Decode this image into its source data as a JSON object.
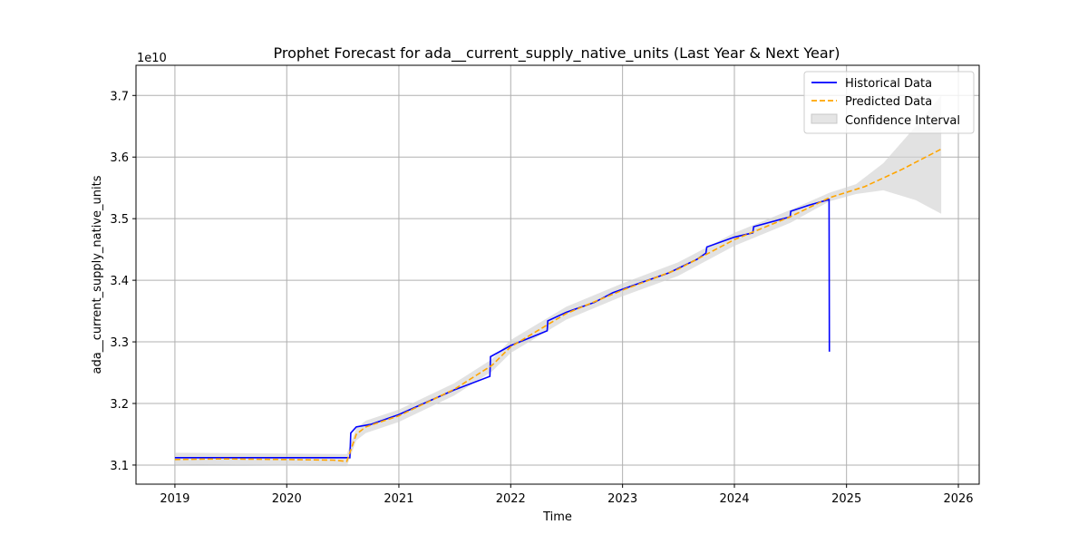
{
  "chart_data": {
    "type": "line",
    "title": "Prophet Forecast for ada__current_supply_native_units (Last Year & Next Year)",
    "xlabel": "Time",
    "ylabel": "ada__current_supply_native_units",
    "y_offset_label": "1e10",
    "x_ticks": [
      "2019",
      "2020",
      "2021",
      "2022",
      "2023",
      "2024",
      "2025",
      "2026"
    ],
    "y_ticks": [
      "3.1",
      "3.2",
      "3.3",
      "3.4",
      "3.5",
      "3.6",
      "3.7"
    ],
    "x_range": [
      "2018-08-27",
      "2026-03-10"
    ],
    "y_range": [
      3.069,
      3.749
    ],
    "y_multiplier": 10000000000,
    "grid": true,
    "legend_position": "upper right",
    "series": [
      {
        "name": "Historical Data",
        "style": "solid",
        "color": "#0000ff",
        "points": [
          [
            "2019-01-01",
            3.112
          ],
          [
            "2019-06-01",
            3.112
          ],
          [
            "2020-01-01",
            3.112
          ],
          [
            "2020-07-25",
            3.112
          ],
          [
            "2020-07-28",
            3.152
          ],
          [
            "2020-08-15",
            3.162
          ],
          [
            "2020-10-01",
            3.166
          ],
          [
            "2021-01-01",
            3.182
          ],
          [
            "2021-04-01",
            3.202
          ],
          [
            "2021-07-01",
            3.222
          ],
          [
            "2021-10-25",
            3.244
          ],
          [
            "2021-10-27",
            3.276
          ],
          [
            "2022-01-01",
            3.294
          ],
          [
            "2022-04-30",
            3.318
          ],
          [
            "2022-05-02",
            3.334
          ],
          [
            "2022-07-01",
            3.348
          ],
          [
            "2022-10-01",
            3.364
          ],
          [
            "2022-12-01",
            3.38
          ],
          [
            "2023-03-01",
            3.396
          ],
          [
            "2023-06-01",
            3.412
          ],
          [
            "2023-09-01",
            3.434
          ],
          [
            "2023-09-30",
            3.444
          ],
          [
            "2023-10-03",
            3.454
          ],
          [
            "2024-01-01",
            3.47
          ],
          [
            "2024-03-01",
            3.477
          ],
          [
            "2024-03-04",
            3.487
          ],
          [
            "2024-07-01",
            3.503
          ],
          [
            "2024-07-03",
            3.512
          ],
          [
            "2024-09-01",
            3.522
          ],
          [
            "2024-11-05",
            3.531
          ],
          [
            "2024-11-06",
            3.284
          ]
        ]
      },
      {
        "name": "Predicted Data",
        "style": "dashed",
        "color": "#ffa500",
        "points": [
          [
            "2019-01-01",
            3.109
          ],
          [
            "2019-06-01",
            3.11
          ],
          [
            "2020-01-01",
            3.109
          ],
          [
            "2020-06-01",
            3.108
          ],
          [
            "2020-07-15",
            3.106
          ],
          [
            "2020-08-15",
            3.15
          ],
          [
            "2020-09-15",
            3.162
          ],
          [
            "2021-01-01",
            3.18
          ],
          [
            "2021-07-01",
            3.223
          ],
          [
            "2021-11-01",
            3.262
          ],
          [
            "2022-01-01",
            3.292
          ],
          [
            "2022-07-01",
            3.346
          ],
          [
            "2023-01-01",
            3.384
          ],
          [
            "2023-07-01",
            3.418
          ],
          [
            "2024-01-01",
            3.466
          ],
          [
            "2024-07-01",
            3.503
          ],
          [
            "2024-11-06",
            3.534
          ],
          [
            "2025-03-01",
            3.552
          ],
          [
            "2025-07-01",
            3.58
          ],
          [
            "2025-11-06",
            3.613
          ]
        ]
      },
      {
        "name": "Confidence Interval",
        "style": "band",
        "color": "#d3d3d3",
        "upper": [
          [
            "2019-01-01",
            3.12
          ],
          [
            "2020-07-15",
            3.118
          ],
          [
            "2020-08-15",
            3.16
          ],
          [
            "2020-09-15",
            3.172
          ],
          [
            "2021-01-01",
            3.19
          ],
          [
            "2021-07-01",
            3.233
          ],
          [
            "2021-11-01",
            3.272
          ],
          [
            "2022-01-01",
            3.303
          ],
          [
            "2022-07-01",
            3.357
          ],
          [
            "2023-01-01",
            3.395
          ],
          [
            "2023-07-01",
            3.429
          ],
          [
            "2024-01-01",
            3.477
          ],
          [
            "2024-07-01",
            3.514
          ],
          [
            "2024-11-06",
            3.542
          ],
          [
            "2025-02-01",
            3.556
          ],
          [
            "2025-05-01",
            3.59
          ],
          [
            "2025-08-15",
            3.65
          ],
          [
            "2025-11-06",
            3.7
          ]
        ],
        "lower": [
          [
            "2019-01-01",
            3.101
          ],
          [
            "2020-07-15",
            3.098
          ],
          [
            "2020-08-15",
            3.14
          ],
          [
            "2020-09-15",
            3.152
          ],
          [
            "2021-01-01",
            3.17
          ],
          [
            "2021-07-01",
            3.213
          ],
          [
            "2021-11-01",
            3.252
          ],
          [
            "2022-01-01",
            3.282
          ],
          [
            "2022-07-01",
            3.336
          ],
          [
            "2023-01-01",
            3.374
          ],
          [
            "2023-07-01",
            3.407
          ],
          [
            "2024-01-01",
            3.456
          ],
          [
            "2024-07-01",
            3.493
          ],
          [
            "2024-11-06",
            3.528
          ],
          [
            "2025-02-01",
            3.54
          ],
          [
            "2025-05-01",
            3.546
          ],
          [
            "2025-08-15",
            3.53
          ],
          [
            "2025-11-06",
            3.508
          ]
        ]
      }
    ]
  }
}
